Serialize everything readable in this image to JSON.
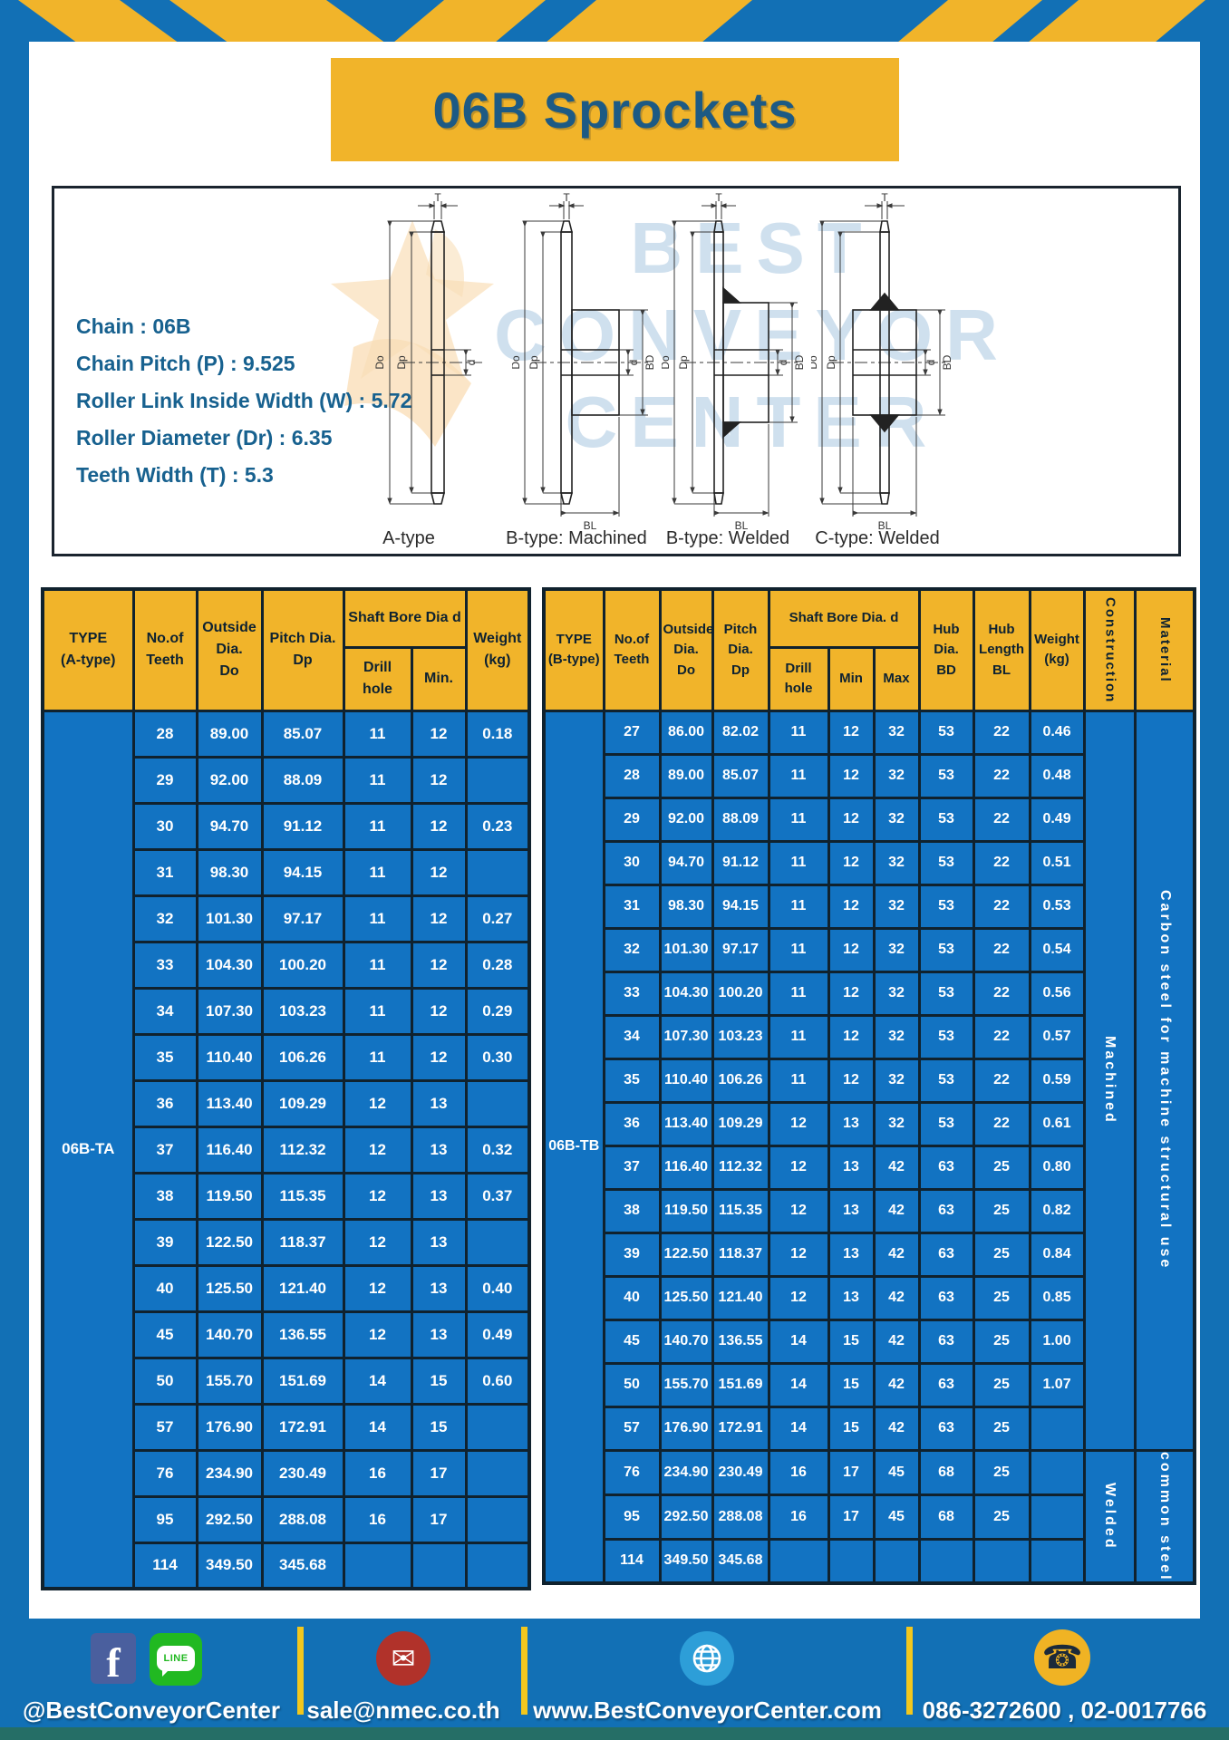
{
  "banner": {
    "title": "06B Sprockets"
  },
  "specs": {
    "lines": [
      "Chain  :  06B",
      "Chain Pitch (P)  :  9.525",
      "Roller Link Inside Width (W)  :  5.72",
      "Roller Diameter (Dr)  : 6.35",
      "Teeth Width (T)  :  5.3"
    ]
  },
  "diagram": {
    "watermark": [
      "BEST",
      "CONVEYOR",
      "CENTER"
    ],
    "dim_labels": {
      "t": "T",
      "do": "Do",
      "dp": "Dp",
      "d": "d",
      "bd": "BD",
      "bl": "BL"
    },
    "types": [
      "A-type",
      "B-type: Machined",
      "B-type: Welded",
      "C-type: Welded"
    ]
  },
  "table_a": {
    "headers": {
      "type": "TYPE\n(A-type)",
      "teeth": "No.of\nTeeth",
      "outside": "Outside\nDia.\nDo",
      "pitch": "Pitch Dia.\nDp",
      "shaft_bore": "Shaft Bore Dia d",
      "drill": "Drill hole",
      "min": "Min.",
      "weight": "Weight\n(kg)"
    },
    "type_label": "06B-TA",
    "rows": [
      [
        "28",
        "89.00",
        "85.07",
        "11",
        "12",
        "0.18"
      ],
      [
        "29",
        "92.00",
        "88.09",
        "11",
        "12",
        ""
      ],
      [
        "30",
        "94.70",
        "91.12",
        "11",
        "12",
        "0.23"
      ],
      [
        "31",
        "98.30",
        "94.15",
        "11",
        "12",
        ""
      ],
      [
        "32",
        "101.30",
        "97.17",
        "11",
        "12",
        "0.27"
      ],
      [
        "33",
        "104.30",
        "100.20",
        "11",
        "12",
        "0.28"
      ],
      [
        "34",
        "107.30",
        "103.23",
        "11",
        "12",
        "0.29"
      ],
      [
        "35",
        "110.40",
        "106.26",
        "11",
        "12",
        "0.30"
      ],
      [
        "36",
        "113.40",
        "109.29",
        "12",
        "13",
        ""
      ],
      [
        "37",
        "116.40",
        "112.32",
        "12",
        "13",
        "0.32"
      ],
      [
        "38",
        "119.50",
        "115.35",
        "12",
        "13",
        "0.37"
      ],
      [
        "39",
        "122.50",
        "118.37",
        "12",
        "13",
        ""
      ],
      [
        "40",
        "125.50",
        "121.40",
        "12",
        "13",
        "0.40"
      ],
      [
        "45",
        "140.70",
        "136.55",
        "12",
        "13",
        "0.49"
      ],
      [
        "50",
        "155.70",
        "151.69",
        "14",
        "15",
        "0.60"
      ],
      [
        "57",
        "176.90",
        "172.91",
        "14",
        "15",
        ""
      ],
      [
        "76",
        "234.90",
        "230.49",
        "16",
        "17",
        ""
      ],
      [
        "95",
        "292.50",
        "288.08",
        "16",
        "17",
        ""
      ],
      [
        "114",
        "349.50",
        "345.68",
        "",
        "",
        ""
      ]
    ]
  },
  "table_b": {
    "headers": {
      "type": "TYPE\n(B-type)",
      "teeth": "No.of\nTeeth",
      "outside": "Outside\nDia.\nDo",
      "pitch": "Pitch\nDia.\nDp",
      "shaft_bore": "Shaft Bore Dia. d",
      "drill": "Drill hole",
      "min": "Min",
      "max": "Max",
      "hub_dia": "Hub\nDia.\nBD",
      "hub_len": "Hub\nLength\nBL",
      "weight": "Weight\n(kg)",
      "construction": "Construction",
      "material": "Material"
    },
    "type_label": "06B-TB",
    "construction": [
      {
        "label": "Machined",
        "rows": 17
      },
      {
        "label": "Welded",
        "rows": 3
      }
    ],
    "material": [
      {
        "label": "Carbon steel for machine structural use",
        "rows": 17
      },
      {
        "label": "common steel",
        "rows": 3
      }
    ],
    "rows": [
      [
        "27",
        "86.00",
        "82.02",
        "11",
        "12",
        "32",
        "53",
        "22",
        "0.46"
      ],
      [
        "28",
        "89.00",
        "85.07",
        "11",
        "12",
        "32",
        "53",
        "22",
        "0.48"
      ],
      [
        "29",
        "92.00",
        "88.09",
        "11",
        "12",
        "32",
        "53",
        "22",
        "0.49"
      ],
      [
        "30",
        "94.70",
        "91.12",
        "11",
        "12",
        "32",
        "53",
        "22",
        "0.51"
      ],
      [
        "31",
        "98.30",
        "94.15",
        "11",
        "12",
        "32",
        "53",
        "22",
        "0.53"
      ],
      [
        "32",
        "101.30",
        "97.17",
        "11",
        "12",
        "32",
        "53",
        "22",
        "0.54"
      ],
      [
        "33",
        "104.30",
        "100.20",
        "11",
        "12",
        "32",
        "53",
        "22",
        "0.56"
      ],
      [
        "34",
        "107.30",
        "103.23",
        "11",
        "12",
        "32",
        "53",
        "22",
        "0.57"
      ],
      [
        "35",
        "110.40",
        "106.26",
        "11",
        "12",
        "32",
        "53",
        "22",
        "0.59"
      ],
      [
        "36",
        "113.40",
        "109.29",
        "12",
        "13",
        "32",
        "53",
        "22",
        "0.61"
      ],
      [
        "37",
        "116.40",
        "112.32",
        "12",
        "13",
        "42",
        "63",
        "25",
        "0.80"
      ],
      [
        "38",
        "119.50",
        "115.35",
        "12",
        "13",
        "42",
        "63",
        "25",
        "0.82"
      ],
      [
        "39",
        "122.50",
        "118.37",
        "12",
        "13",
        "42",
        "63",
        "25",
        "0.84"
      ],
      [
        "40",
        "125.50",
        "121.40",
        "12",
        "13",
        "42",
        "63",
        "25",
        "0.85"
      ],
      [
        "45",
        "140.70",
        "136.55",
        "14",
        "15",
        "42",
        "63",
        "25",
        "1.00"
      ],
      [
        "50",
        "155.70",
        "151.69",
        "14",
        "15",
        "42",
        "63",
        "25",
        "1.07"
      ],
      [
        "57",
        "176.90",
        "172.91",
        "14",
        "15",
        "42",
        "63",
        "25",
        ""
      ],
      [
        "76",
        "234.90",
        "230.49",
        "16",
        "17",
        "45",
        "68",
        "25",
        ""
      ],
      [
        "95",
        "292.50",
        "288.08",
        "16",
        "17",
        "45",
        "68",
        "25",
        ""
      ],
      [
        "114",
        "349.50",
        "345.68",
        "",
        "",
        "",
        "",
        "",
        ""
      ]
    ]
  },
  "footer": {
    "social_handle": "@BestConveyorCenter",
    "facebook_letter": "f",
    "line_label": "LINE",
    "email": "sale@nmec.co.th",
    "website": "www.BestConveyorCenter.com",
    "phones": "086-3272600 , 02-0017766"
  },
  "colors": {
    "brand_blue": "#1270b5",
    "cell_blue": "#1273c2",
    "brand_yellow": "#f1b42a",
    "border_dark": "#10222e",
    "title_blue": "#1d5a84"
  }
}
